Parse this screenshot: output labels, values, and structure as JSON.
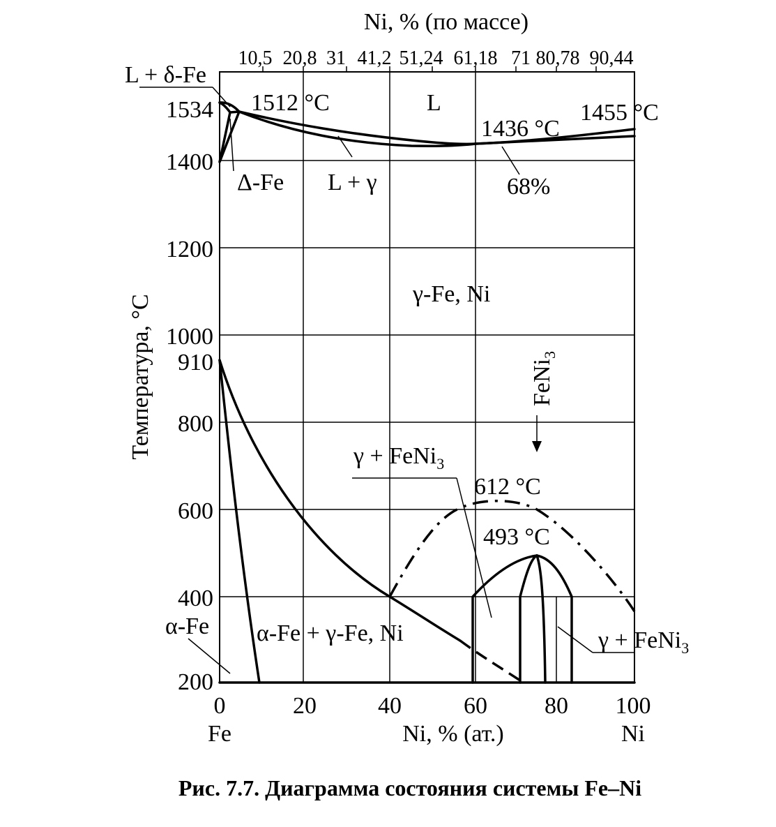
{
  "diagram": {
    "top_axis_title": "Ni, % (по массе)",
    "top_ticks": [
      "10,5",
      "20,8",
      "31",
      "41,2",
      "51,24",
      "61,18",
      "71",
      "80,78",
      "90,44"
    ],
    "y_axis_title": "Температура, °C",
    "y_ticks": [
      "1534",
      "1400",
      "1200",
      "1000",
      "910",
      "800",
      "600",
      "400",
      "200"
    ],
    "x_ticks": [
      "0",
      "20",
      "40",
      "60",
      "80",
      "100"
    ],
    "x_end_left": "Fe",
    "x_axis_title": "Ni, % (ат.)",
    "x_end_right": "Ni",
    "regions": {
      "l_delta": "L + δ-Fe",
      "liquid": "L",
      "t_1512": "1512 °C",
      "t_1436": "1436 °C",
      "t_1455": "1455 °C",
      "delta_fe": "Δ-Fe",
      "l_gamma": "L + γ",
      "pct_68": "68%",
      "gamma_fe_ni": "γ-Fe, Ni",
      "feni3_label_base": "FeNi",
      "feni3_label_sub": "3",
      "gamma_feni3_upper_base": "γ + FeNi",
      "gamma_feni3_upper_sub": "3",
      "t_612": "612 °C",
      "t_493": "493 °C",
      "alpha_fe": "α-Fe",
      "alpha_gamma": "α-Fe + γ-Fe, Ni",
      "gamma_feni3_lower_base": "γ + FeNi",
      "gamma_feni3_lower_sub": "3"
    }
  },
  "caption": "Рис.  7.7. Диаграмма состояния системы Fe–Ni"
}
